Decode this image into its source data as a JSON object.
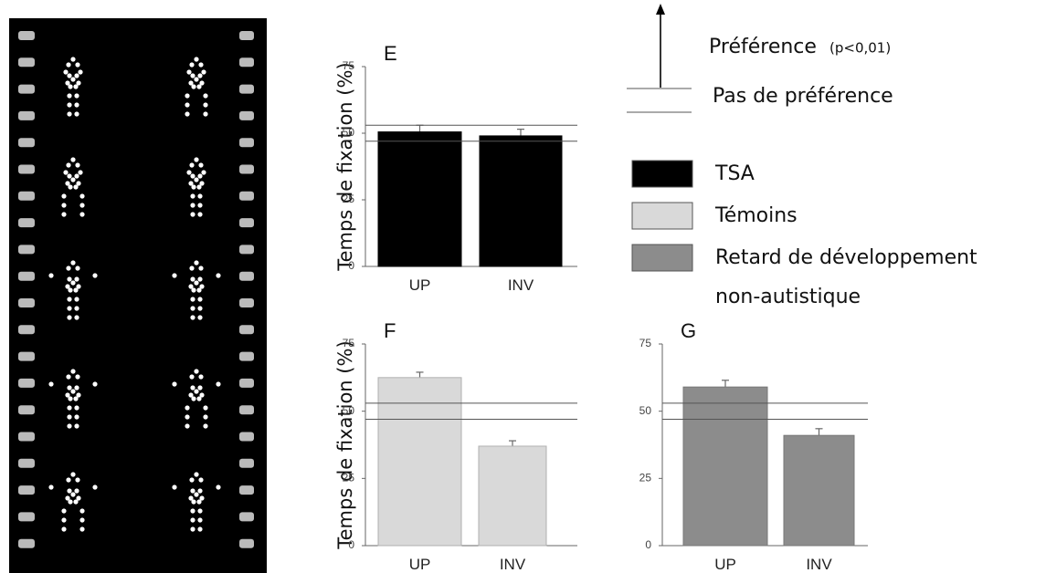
{
  "chart_data": [
    {
      "type": "bar",
      "title": "E",
      "y_label": "Temps de fixation (%)",
      "categories": [
        "UP",
        "INV"
      ],
      "values": [
        50.5,
        49
      ],
      "errors": [
        2.5,
        2.5
      ],
      "color": "#000000",
      "edge_color": "#000000",
      "ylim": [
        0,
        75
      ],
      "yticks": [
        0,
        25,
        50,
        75
      ],
      "reference_lines": [
        47,
        53
      ]
    },
    {
      "type": "bar",
      "title": "F",
      "y_label": "Temps de fixation (%)",
      "categories": [
        "UP",
        "INV"
      ],
      "values": [
        62.5,
        37
      ],
      "errors": [
        2,
        2
      ],
      "color": "#d9d9d9",
      "edge_color": "#b0b0b0",
      "ylim": [
        0,
        75
      ],
      "yticks": [
        0,
        25,
        50,
        75
      ],
      "reference_lines": [
        47,
        53
      ]
    },
    {
      "type": "bar",
      "title": "G",
      "categories": [
        "UP",
        "INV"
      ],
      "values": [
        59,
        41
      ],
      "errors": [
        2.5,
        2.5
      ],
      "color": "#8c8c8c",
      "edge_color": "#777777",
      "ylim": [
        0,
        75
      ],
      "yticks": [
        0,
        25,
        50,
        75
      ],
      "reference_lines": [
        47,
        53
      ]
    }
  ],
  "legend": {
    "arrow_label": "Préférence",
    "arrow_note": "(p<0,01)",
    "lines_label": "Pas de préférence",
    "items": [
      {
        "label": "TSA",
        "color": "#000000"
      },
      {
        "label": "Témoins",
        "color": "#d9d9d9"
      },
      {
        "label": "Retard de développement",
        "color": "#8c8c8c"
      }
    ],
    "extra_line": "non-autistique"
  }
}
